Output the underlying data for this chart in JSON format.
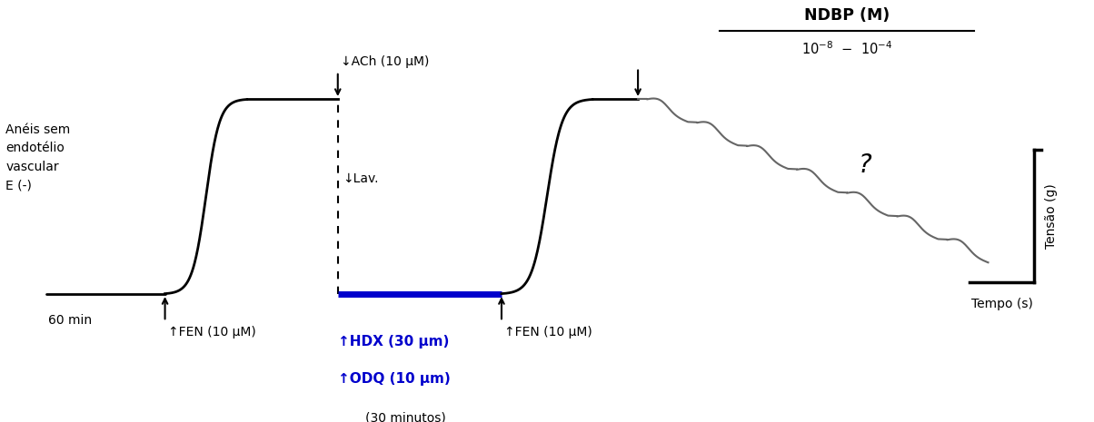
{
  "bg_color": "#ffffff",
  "line_color_black": "#000000",
  "line_color_gray": "#666666",
  "line_color_blue": "#0000cc",
  "text_color_black": "#000000",
  "text_color_blue": "#0000cc",
  "label_aneis": "Anéis sem\nendotélio\nvascular\nE (-)",
  "label_60min": "60 min",
  "label_fen1": "↑FEN (10 μM)",
  "label_ach": "↓ACh (10 μM)",
  "label_lav": "↓Lav.",
  "label_hdx": "↑HDX (30 μm)",
  "label_odq": "↑ODQ (10 μm)",
  "label_30min": "(30 minutos)",
  "label_fen2": "↑FEN (10 μM)",
  "label_question": "?",
  "label_tensao": "Tensão (g)",
  "label_tempo": "Tempo (s)",
  "title_ndbp": "NDBP (M)"
}
